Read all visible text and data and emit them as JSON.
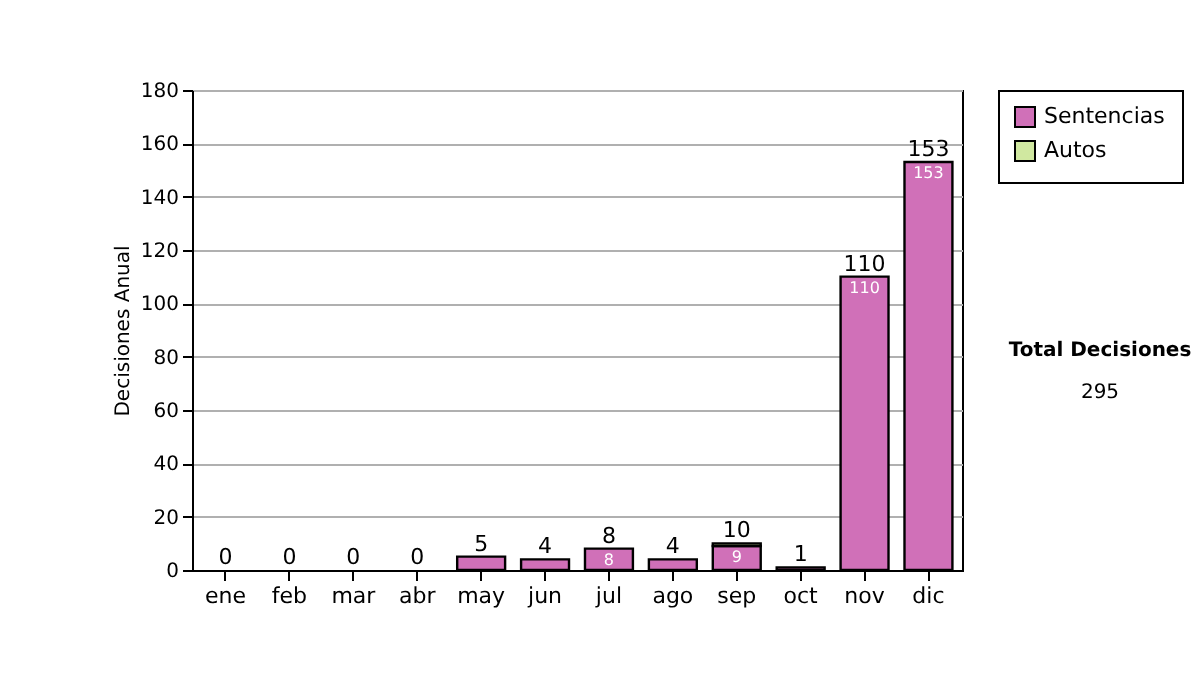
{
  "chart_data": {
    "type": "bar",
    "stacked": true,
    "ylabel": "Decisiones Anual",
    "categories": [
      "ene",
      "feb",
      "mar",
      "abr",
      "may",
      "jun",
      "jul",
      "ago",
      "sep",
      "oct",
      "nov",
      "dic"
    ],
    "series": [
      {
        "name": "Sentencias",
        "color": "#d070b8",
        "values": [
          0,
          0,
          0,
          0,
          5,
          4,
          8,
          4,
          9,
          1,
          110,
          153
        ],
        "value_labels": [
          null,
          null,
          null,
          null,
          null,
          null,
          "8",
          null,
          "9",
          null,
          "110",
          "153"
        ]
      },
      {
        "name": "Autos",
        "color": "#d0e8a0",
        "values": [
          0,
          0,
          0,
          0,
          0,
          0,
          0,
          0,
          1,
          0,
          0,
          0
        ]
      }
    ],
    "totals": [
      "0",
      "0",
      "0",
      "0",
      "5",
      "4",
      "8",
      "4",
      "10",
      "1",
      "110",
      "153"
    ],
    "ylim": [
      0,
      180
    ],
    "yticks": [
      0,
      20,
      40,
      60,
      80,
      100,
      120,
      140,
      160,
      180
    ],
    "grid": "y",
    "legend": "right",
    "annotations": [
      "Total Decisiones",
      "295"
    ]
  }
}
